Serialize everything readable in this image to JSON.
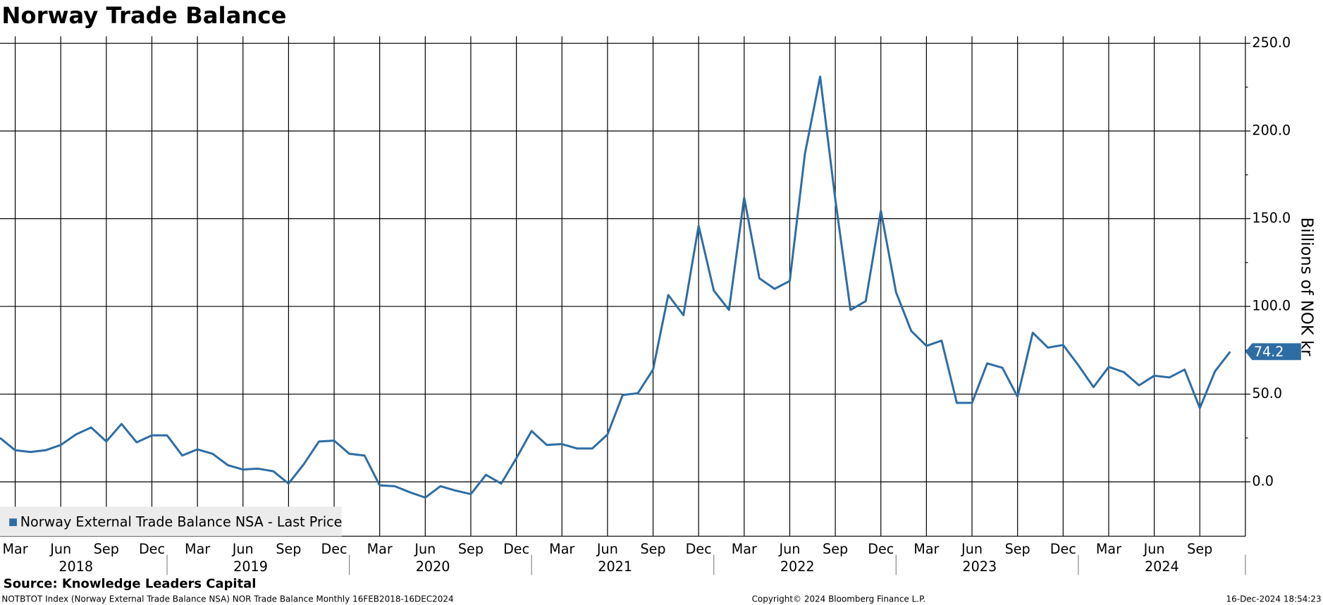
{
  "chart_data": {
    "type": "line",
    "title": "Norway Trade Balance",
    "y_axis_label": "Billions of NOK kr",
    "legend_label": "Norway External Trade Balance NSA - Last Price",
    "source": "Source: Knowledge Leaders Capital",
    "footer_left": "NOTBTOT Index (Norway External Trade Balance NSA) NOR Trade Balance  Monthly 16FEB2018-16DEC2024",
    "footer_center": "Copyright© 2024 Bloomberg Finance L.P.",
    "footer_right": "16-Dec-2024 18:54:23",
    "grid": true,
    "x": [
      "2018-02",
      "2018-03",
      "2018-04",
      "2018-05",
      "2018-06",
      "2018-07",
      "2018-08",
      "2018-09",
      "2018-10",
      "2018-11",
      "2018-12",
      "2019-01",
      "2019-02",
      "2019-03",
      "2019-04",
      "2019-05",
      "2019-06",
      "2019-07",
      "2019-08",
      "2019-09",
      "2019-10",
      "2019-11",
      "2019-12",
      "2020-01",
      "2020-02",
      "2020-03",
      "2020-04",
      "2020-05",
      "2020-06",
      "2020-07",
      "2020-08",
      "2020-09",
      "2020-10",
      "2020-11",
      "2020-12",
      "2021-01",
      "2021-02",
      "2021-03",
      "2021-04",
      "2021-05",
      "2021-06",
      "2021-07",
      "2021-08",
      "2021-09",
      "2021-10",
      "2021-11",
      "2021-12",
      "2022-01",
      "2022-02",
      "2022-03",
      "2022-04",
      "2022-05",
      "2022-06",
      "2022-07",
      "2022-08",
      "2022-09",
      "2022-10",
      "2022-11",
      "2022-12",
      "2023-01",
      "2023-02",
      "2023-03",
      "2023-04",
      "2023-05",
      "2023-06",
      "2023-07",
      "2023-08",
      "2023-09",
      "2023-10",
      "2023-11",
      "2023-12",
      "2024-01",
      "2024-02",
      "2024-03",
      "2024-04",
      "2024-05",
      "2024-06",
      "2024-07",
      "2024-08",
      "2024-09",
      "2024-10",
      "2024-11"
    ],
    "series": [
      {
        "name": "Norway External Trade Balance NSA",
        "color": "#2e6da4",
        "values": [
          25,
          18,
          17,
          18,
          21,
          27,
          31,
          23,
          33,
          22.5,
          26.5,
          26.5,
          15,
          18.5,
          16,
          9.5,
          7,
          7.5,
          6,
          -1,
          10,
          23,
          23.5,
          16,
          15,
          -2,
          -2.5,
          -6,
          -9,
          -2.5,
          -5,
          -7,
          4,
          -1,
          13.5,
          29,
          21,
          21.5,
          19,
          19,
          27,
          49.5,
          50.5,
          64,
          106.5,
          95,
          146,
          109,
          98,
          162,
          116,
          110,
          114.5,
          187,
          231,
          161,
          98,
          103,
          154.5,
          108,
          86,
          77.5,
          80.5,
          45,
          45,
          67.5,
          65,
          48.5,
          85,
          76.5,
          78,
          66.5,
          54,
          65.5,
          62.5,
          55,
          60.5,
          59.5,
          64,
          42,
          63,
          74.2
        ]
      }
    ],
    "xlim": [
      "2018-02",
      "2024-12"
    ],
    "xticks": [
      {
        "value": "2018-03",
        "label": "Mar"
      },
      {
        "value": "2018-06",
        "label": "Jun"
      },
      {
        "value": "2018-09",
        "label": "Sep"
      },
      {
        "value": "2018-12",
        "label": "Dec"
      },
      {
        "value": "2019-03",
        "label": "Mar"
      },
      {
        "value": "2019-06",
        "label": "Jun"
      },
      {
        "value": "2019-09",
        "label": "Sep"
      },
      {
        "value": "2019-12",
        "label": "Dec"
      },
      {
        "value": "2020-03",
        "label": "Mar"
      },
      {
        "value": "2020-06",
        "label": "Jun"
      },
      {
        "value": "2020-09",
        "label": "Sep"
      },
      {
        "value": "2020-12",
        "label": "Dec"
      },
      {
        "value": "2021-03",
        "label": "Mar"
      },
      {
        "value": "2021-06",
        "label": "Jun"
      },
      {
        "value": "2021-09",
        "label": "Sep"
      },
      {
        "value": "2021-12",
        "label": "Dec"
      },
      {
        "value": "2022-03",
        "label": "Mar"
      },
      {
        "value": "2022-06",
        "label": "Jun"
      },
      {
        "value": "2022-09",
        "label": "Sep"
      },
      {
        "value": "2022-12",
        "label": "Dec"
      },
      {
        "value": "2023-03",
        "label": "Mar"
      },
      {
        "value": "2023-06",
        "label": "Jun"
      },
      {
        "value": "2023-09",
        "label": "Sep"
      },
      {
        "value": "2023-12",
        "label": "Dec"
      },
      {
        "value": "2024-03",
        "label": "Mar"
      },
      {
        "value": "2024-06",
        "label": "Jun"
      },
      {
        "value": "2024-09",
        "label": "Sep"
      }
    ],
    "years": [
      "2018",
      "2019",
      "2020",
      "2021",
      "2022",
      "2023",
      "2024"
    ],
    "ylim": [
      -31,
      254
    ],
    "yticks": [
      {
        "value": 0,
        "label": "0.0"
      },
      {
        "value": 50,
        "label": "50.0"
      },
      {
        "value": 100,
        "label": "100.0"
      },
      {
        "value": 150,
        "label": "150.0"
      },
      {
        "value": 200,
        "label": "200.0"
      },
      {
        "value": 250,
        "label": "250.0"
      }
    ]
  }
}
